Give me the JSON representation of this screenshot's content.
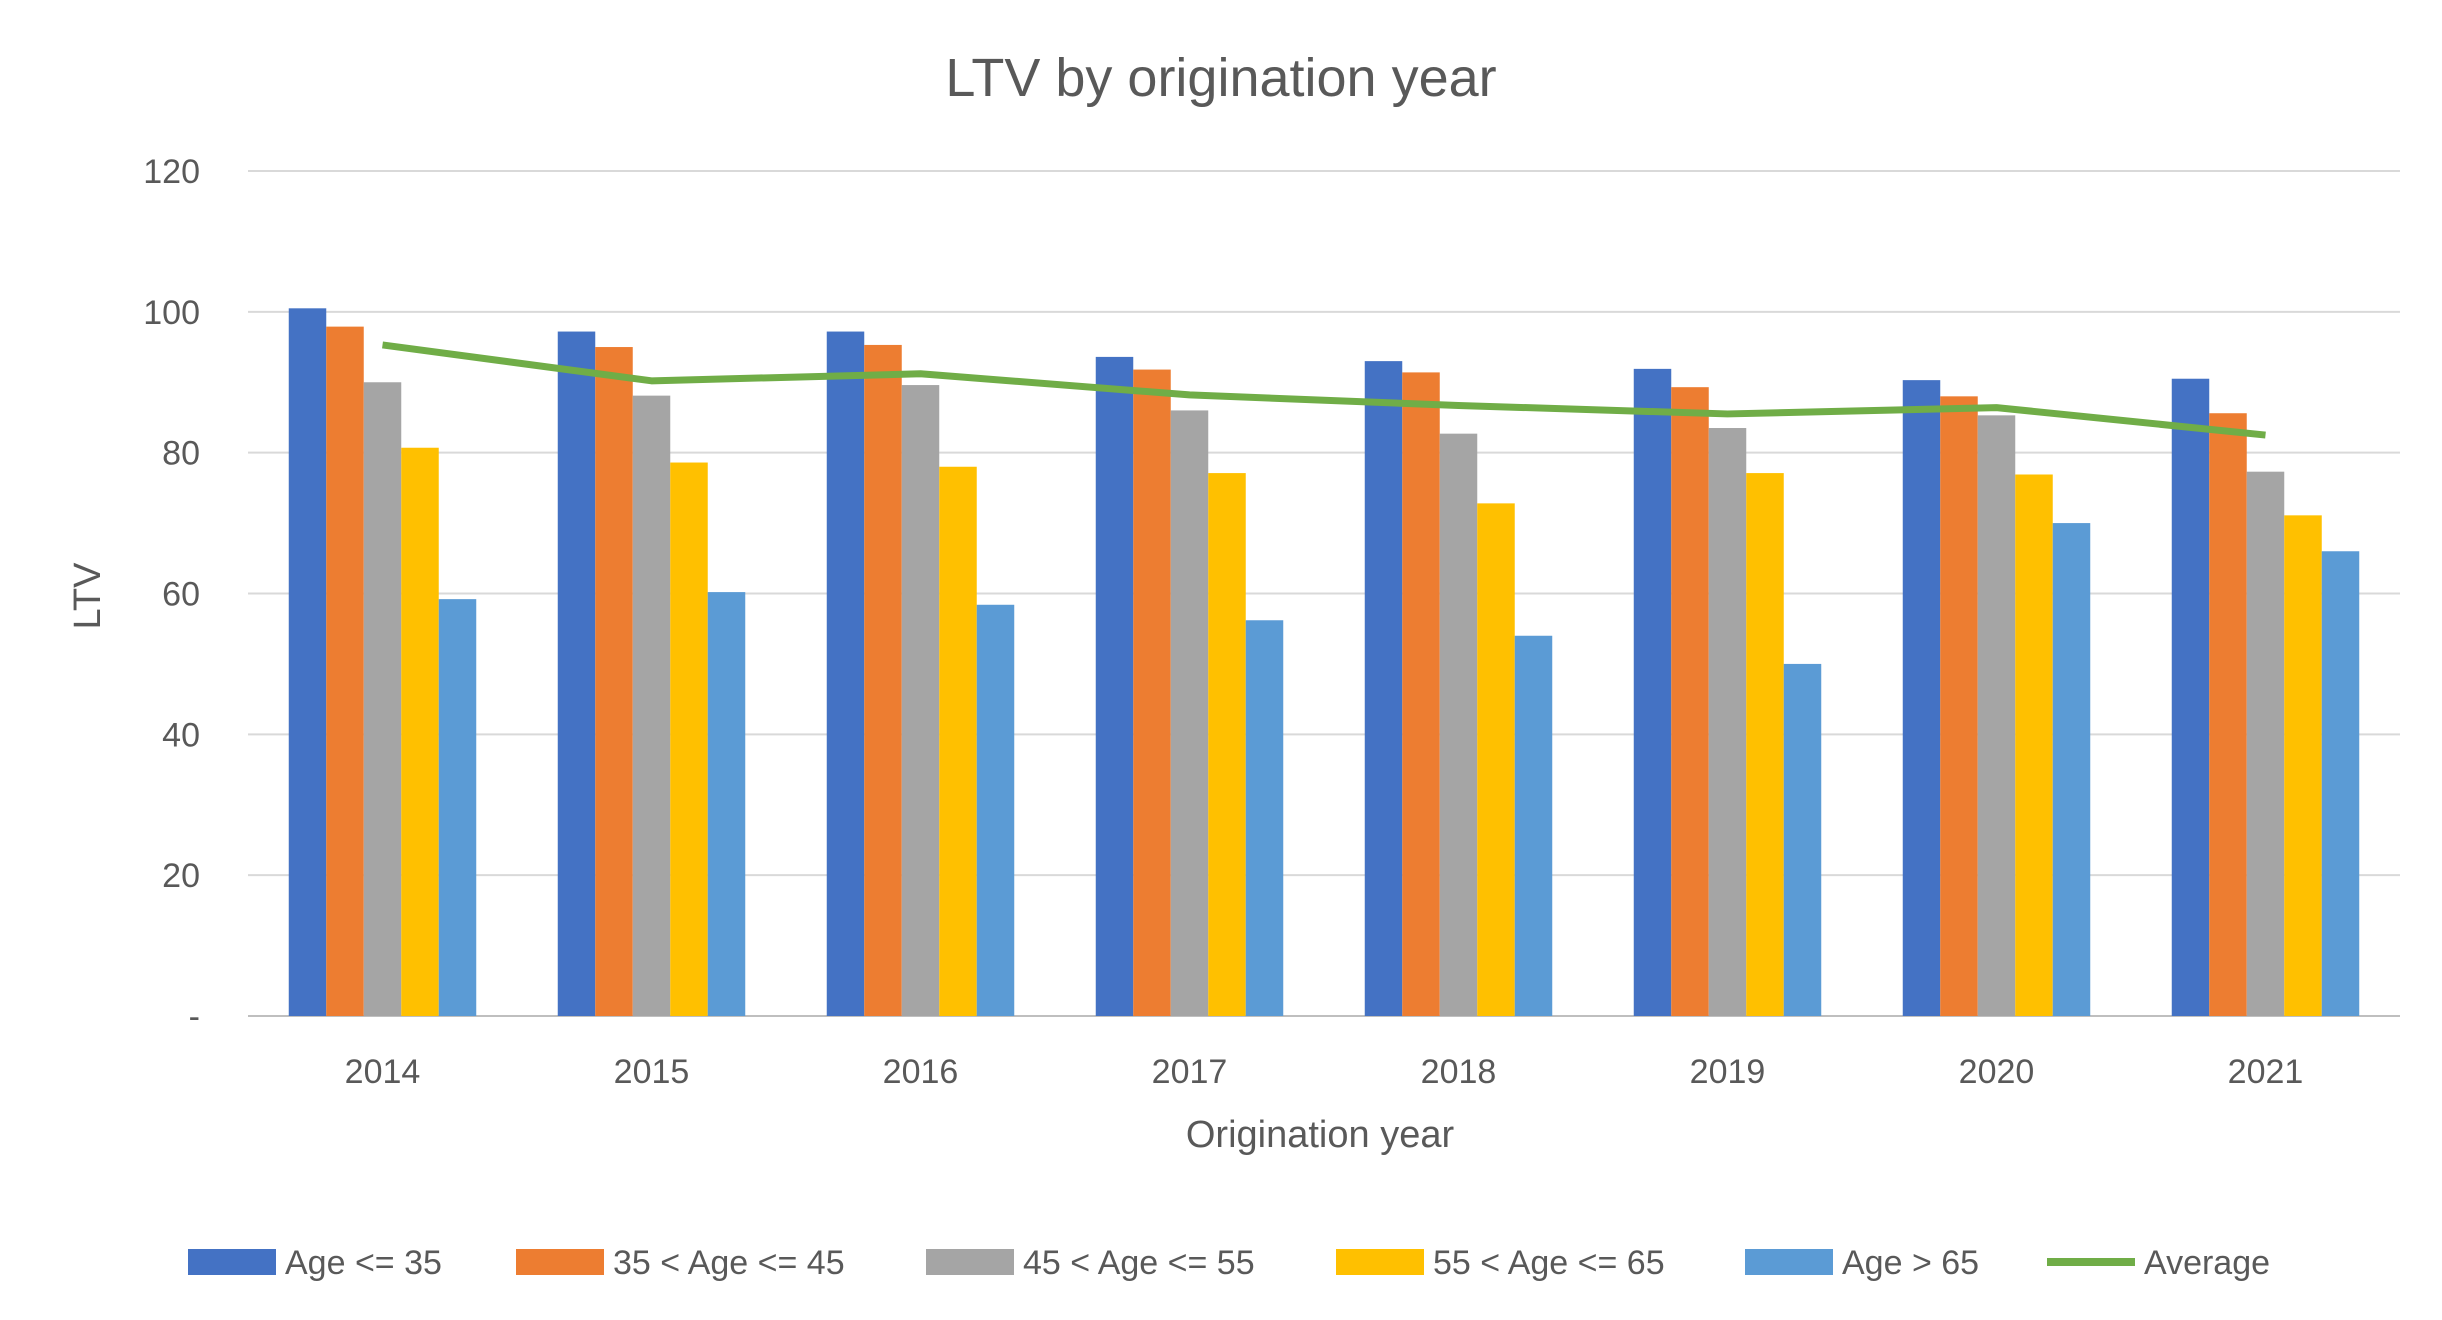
{
  "chart_data": {
    "type": "bar",
    "title": "LTV by origination year",
    "xlabel": "Origination year",
    "ylabel": "LTV",
    "ylim": [
      0,
      120
    ],
    "yticks": [
      {
        "value": 0,
        "label": "-"
      },
      {
        "value": 20,
        "label": "20"
      },
      {
        "value": 40,
        "label": "40"
      },
      {
        "value": 60,
        "label": "60"
      },
      {
        "value": 80,
        "label": "80"
      },
      {
        "value": 100,
        "label": "100"
      },
      {
        "value": 120,
        "label": "120"
      }
    ],
    "grid": true,
    "legend_position": "bottom",
    "categories": [
      "2014",
      "2015",
      "2016",
      "2017",
      "2018",
      "2019",
      "2020",
      "2021"
    ],
    "series": [
      {
        "name": "Age <= 35",
        "color": "#4472C4",
        "values": [
          100.5,
          97.2,
          97.2,
          93.6,
          93.0,
          91.9,
          90.3,
          90.5
        ]
      },
      {
        "name": "35 < Age <= 45",
        "color": "#ED7D31",
        "values": [
          97.9,
          95.0,
          95.3,
          91.8,
          91.4,
          89.3,
          88.0,
          85.6
        ]
      },
      {
        "name": "45 < Age <= 55",
        "color": "#A5A5A5",
        "values": [
          90.0,
          88.1,
          89.6,
          86.0,
          82.7,
          83.5,
          85.3,
          77.3
        ]
      },
      {
        "name": "55 < Age <= 65",
        "color": "#FFC000",
        "values": [
          80.7,
          78.6,
          78.0,
          77.1,
          72.8,
          77.1,
          76.9,
          71.1
        ]
      },
      {
        "name": "Age > 65",
        "color": "#5B9BD5",
        "values": [
          59.2,
          60.2,
          58.4,
          56.2,
          54.0,
          50.0,
          70.0,
          66.0
        ]
      }
    ],
    "line_series": {
      "name": "Average",
      "color": "#70AD47",
      "values": [
        95.3,
        90.2,
        91.2,
        88.2,
        86.7,
        85.5,
        86.4,
        82.5
      ]
    }
  }
}
